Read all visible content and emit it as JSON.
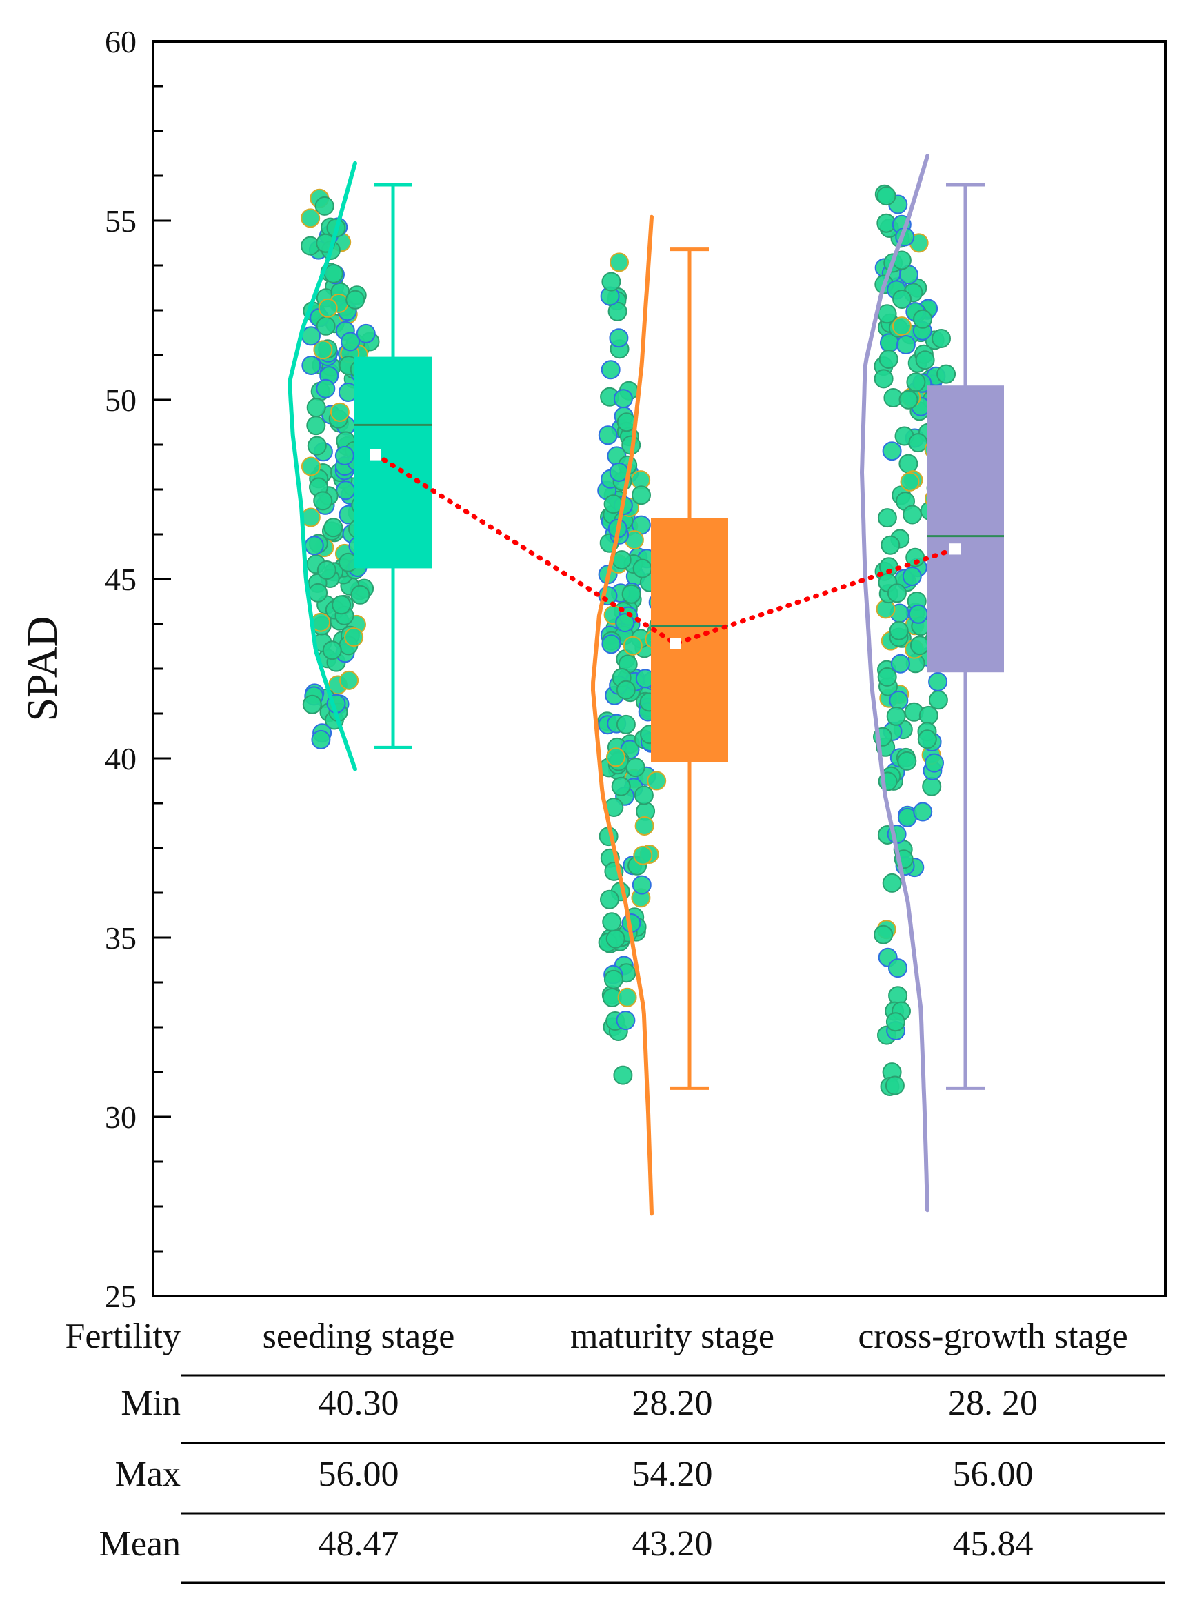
{
  "chart_data": {
    "type": "raincloud-box",
    "ylabel": "SPAD",
    "ylim": [
      25,
      60
    ],
    "yticks": [
      25,
      30,
      35,
      40,
      45,
      50,
      55,
      60
    ],
    "mean_line_color": "#ff0000",
    "groups": [
      {
        "name": "seeding stage",
        "color": "#00e0b4",
        "median_color": "#2e8b57",
        "whisker_low": 40.3,
        "whisker_high": 56.0,
        "q1": 45.3,
        "median": 49.3,
        "q3": 51.2,
        "mean": 48.47,
        "density": [
          [
            39.7,
            0.0
          ],
          [
            41,
            0.25
          ],
          [
            43,
            0.6
          ],
          [
            45,
            0.75
          ],
          [
            47,
            0.82
          ],
          [
            49,
            0.95
          ],
          [
            50.5,
            1.0
          ],
          [
            52,
            0.8
          ],
          [
            54,
            0.4
          ],
          [
            56.6,
            0.0
          ]
        ]
      },
      {
        "name": "maturity stage",
        "color": "#ff8c2e",
        "median_color": "#2e8b57",
        "whisker_low": 30.8,
        "whisker_high": 54.2,
        "q1": 39.9,
        "median": 43.7,
        "q3": 46.7,
        "mean": 43.2,
        "density": [
          [
            27.3,
            0.0
          ],
          [
            30,
            0.05
          ],
          [
            33,
            0.12
          ],
          [
            36,
            0.4
          ],
          [
            39,
            0.75
          ],
          [
            42,
            0.9
          ],
          [
            44,
            0.8
          ],
          [
            46,
            0.55
          ],
          [
            48.5,
            0.3
          ],
          [
            51,
            0.15
          ],
          [
            55.1,
            0.0
          ]
        ]
      },
      {
        "name": "cross-growth stage",
        "color": "#9e9ad0",
        "median_color": "#2e8b57",
        "whisker_low": 30.8,
        "whisker_high": 56.0,
        "q1": 42.4,
        "median": 46.2,
        "q3": 50.4,
        "mean": 45.84,
        "density": [
          [
            27.4,
            0.0
          ],
          [
            30,
            0.04
          ],
          [
            33,
            0.1
          ],
          [
            36,
            0.3
          ],
          [
            39,
            0.65
          ],
          [
            42,
            0.85
          ],
          [
            45,
            0.95
          ],
          [
            48,
            1.0
          ],
          [
            51,
            0.95
          ],
          [
            53,
            0.7
          ],
          [
            55,
            0.3
          ],
          [
            56.8,
            0.0
          ]
        ]
      }
    ]
  },
  "table": {
    "header_label": "Fertility",
    "columns": [
      "seeding stage",
      "maturity stage",
      "cross-growth stage"
    ],
    "rows": [
      {
        "label": "Min",
        "values": [
          "40.30",
          "28.20",
          "28. 20"
        ]
      },
      {
        "label": "Max",
        "values": [
          "56.00",
          "54.20",
          "56.00"
        ]
      },
      {
        "label": "Mean",
        "values": [
          "48.47",
          "43.20",
          "45.84"
        ]
      }
    ]
  },
  "colors": {
    "point_fill": "#1fd590",
    "point_edge_blue": "#2f6fe0",
    "point_edge_gold": "#d4a82a",
    "frame": "#000000"
  }
}
